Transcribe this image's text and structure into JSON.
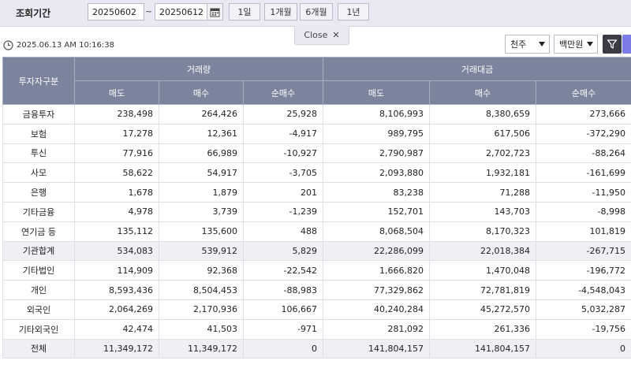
{
  "filter": {
    "label": "조회기간",
    "date_from": "20250602",
    "date_to": "20250612",
    "tilde": "~",
    "periods": [
      "1일",
      "1개월",
      "6개월",
      "1년"
    ]
  },
  "close_label": "Close",
  "timestamp": "2025.06.13 AM 10:16:38",
  "selects": {
    "market": "천주",
    "unit": "백만원"
  },
  "extra_button_text": "",
  "table": {
    "investor_header": "투자자구분",
    "groups": [
      "거래량",
      "거래대금"
    ],
    "subheaders": [
      "매도",
      "매수",
      "순매수",
      "매도",
      "매수",
      "순매수"
    ],
    "rows": [
      {
        "label": "금융투자",
        "values": [
          "238,498",
          "264,426",
          "25,928",
          "8,106,993",
          "8,380,659",
          "273,666"
        ],
        "highlight": false
      },
      {
        "label": "보험",
        "values": [
          "17,278",
          "12,361",
          "-4,917",
          "989,795",
          "617,506",
          "-372,290"
        ],
        "highlight": false
      },
      {
        "label": "투신",
        "values": [
          "77,916",
          "66,989",
          "-10,927",
          "2,790,987",
          "2,702,723",
          "-88,264"
        ],
        "highlight": false
      },
      {
        "label": "사모",
        "values": [
          "58,622",
          "54,917",
          "-3,705",
          "2,093,880",
          "1,932,181",
          "-161,699"
        ],
        "highlight": false
      },
      {
        "label": "은행",
        "values": [
          "1,678",
          "1,879",
          "201",
          "83,238",
          "71,288",
          "-11,950"
        ],
        "highlight": false
      },
      {
        "label": "기타금융",
        "values": [
          "4,978",
          "3,739",
          "-1,239",
          "152,701",
          "143,703",
          "-8,998"
        ],
        "highlight": false
      },
      {
        "label": "연기금 등",
        "values": [
          "135,112",
          "135,600",
          "488",
          "8,068,504",
          "8,170,323",
          "101,819"
        ],
        "highlight": false
      },
      {
        "label": "기관합계",
        "values": [
          "534,083",
          "539,912",
          "5,829",
          "22,286,099",
          "22,018,384",
          "-267,715"
        ],
        "highlight": true
      },
      {
        "label": "기타법인",
        "values": [
          "114,909",
          "92,368",
          "-22,542",
          "1,666,820",
          "1,470,048",
          "-196,772"
        ],
        "highlight": false
      },
      {
        "label": "개인",
        "values": [
          "8,593,436",
          "8,504,453",
          "-88,983",
          "77,329,862",
          "72,781,819",
          "-4,548,043"
        ],
        "highlight": false
      },
      {
        "label": "외국인",
        "values": [
          "2,064,269",
          "2,170,936",
          "106,667",
          "40,240,284",
          "45,272,570",
          "5,032,287"
        ],
        "highlight": false
      },
      {
        "label": "기타외국인",
        "values": [
          "42,474",
          "41,503",
          "-971",
          "281,092",
          "261,336",
          "-19,756"
        ],
        "highlight": false
      },
      {
        "label": "전체",
        "values": [
          "11,349,172",
          "11,349,172",
          "0",
          "141,804,157",
          "141,804,157",
          "0"
        ],
        "highlight": true
      }
    ]
  },
  "colors": {
    "header_bg": "#7b839d",
    "filter_bg": "#e9e9f3",
    "accent": "#7b7ce8"
  }
}
